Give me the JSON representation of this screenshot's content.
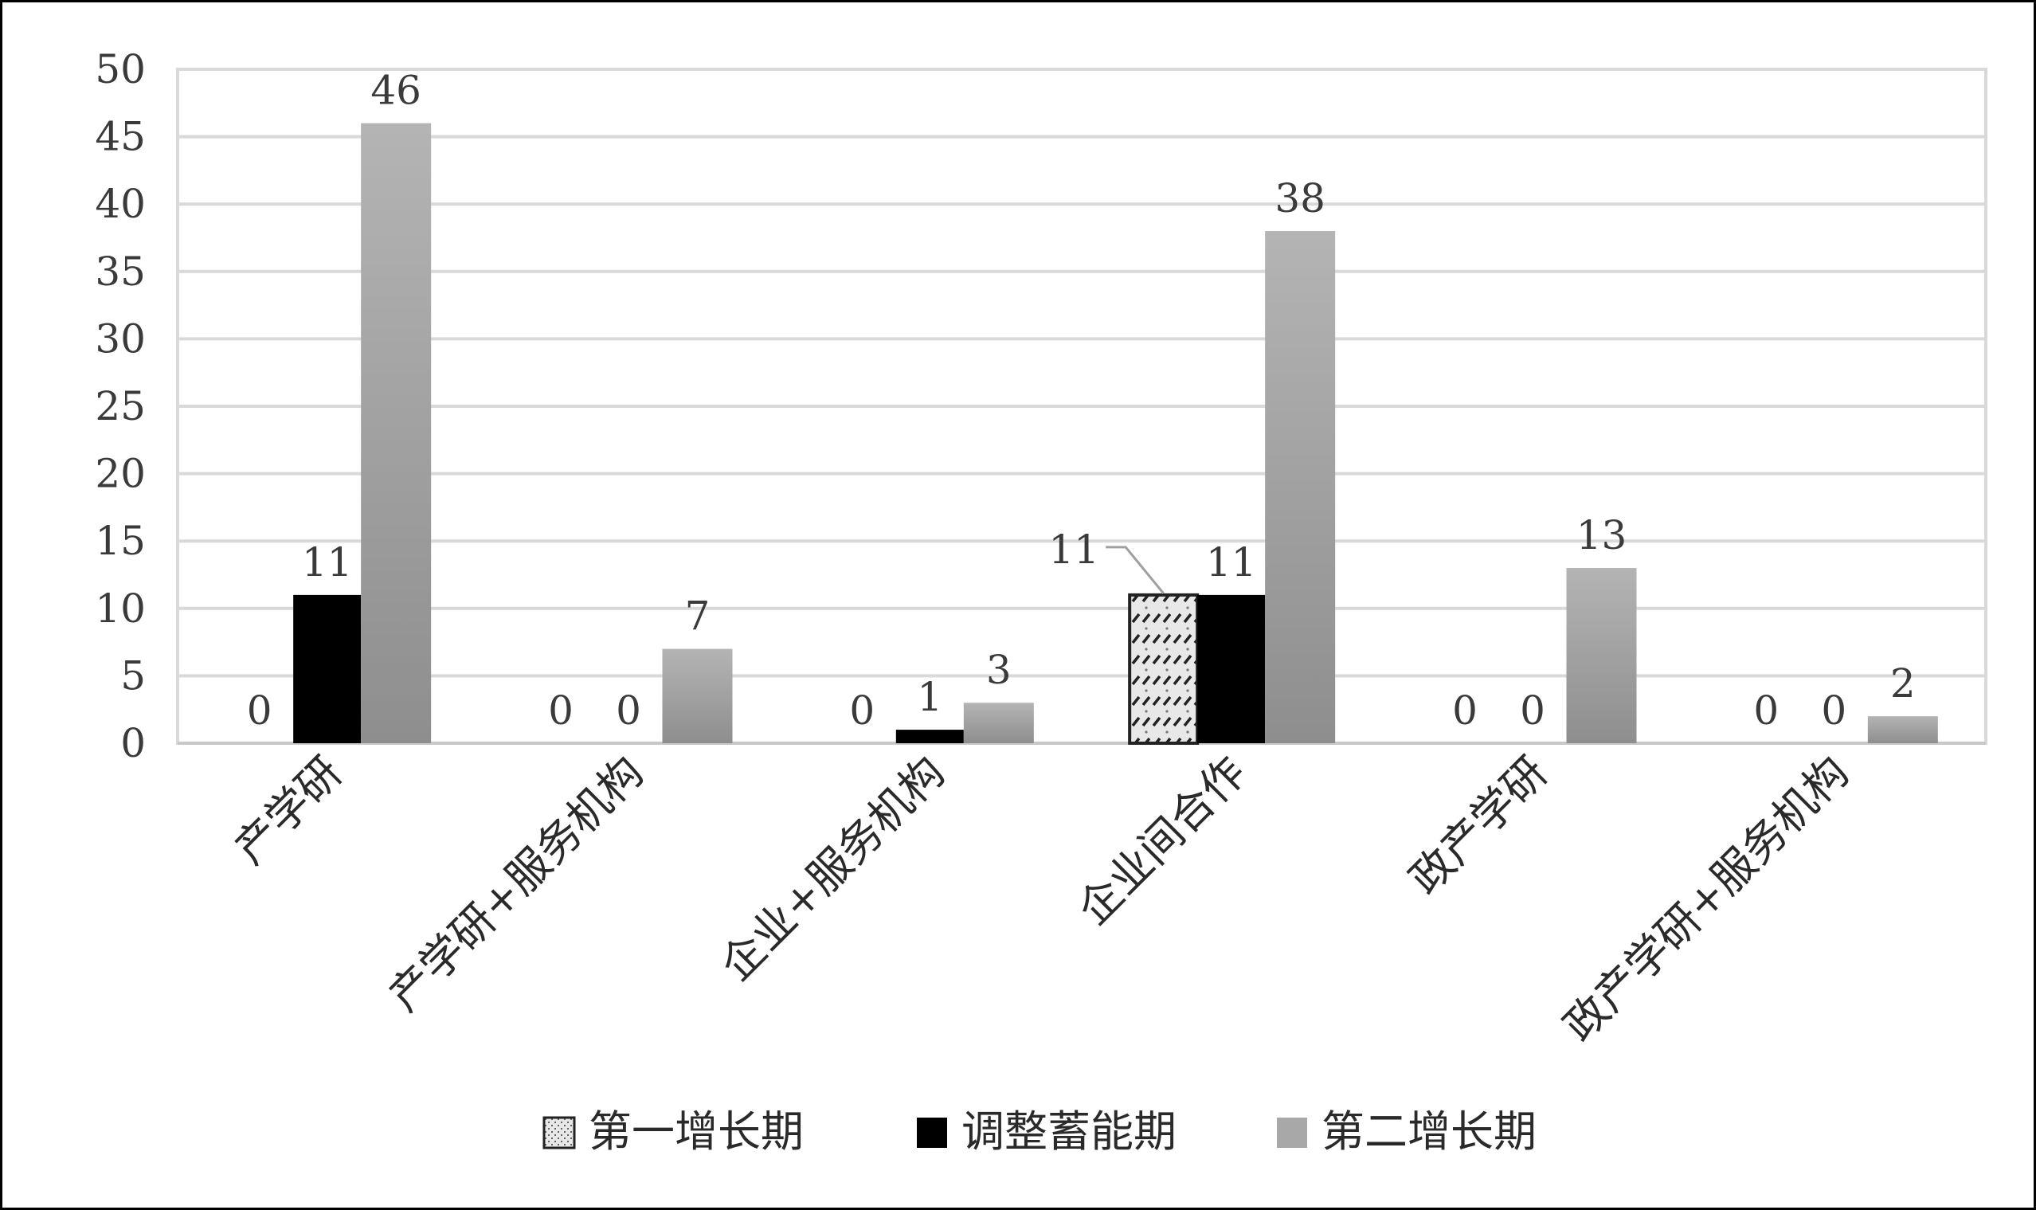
{
  "chart_data": {
    "type": "bar",
    "title": "",
    "xlabel": "",
    "ylabel": "",
    "ylim": [
      0,
      50
    ],
    "yticks": [
      0,
      5,
      10,
      15,
      20,
      25,
      30,
      35,
      40,
      45,
      50
    ],
    "grid": true,
    "legend_position": "bottom",
    "categories": [
      "产学研",
      "产学研+服务机构",
      "企业+服务机构",
      "企业间合作",
      "政产学研",
      "政产学研+服务机构"
    ],
    "series": [
      {
        "name": "第一增长期",
        "values": [
          0,
          0,
          0,
          11,
          0,
          0
        ],
        "color": "#e6e6e6",
        "pattern": "hatched-dotted"
      },
      {
        "name": "调整蓄能期",
        "values": [
          11,
          0,
          1,
          11,
          0,
          0
        ],
        "color": "#000000"
      },
      {
        "name": "第二增长期",
        "values": [
          46,
          7,
          3,
          38,
          13,
          2
        ],
        "color": "#a8a8a8"
      }
    ],
    "data_labels": [
      [
        "0",
        "0",
        "0",
        "11",
        "0",
        "0"
      ],
      [
        "11",
        "0",
        "1",
        "11",
        "0",
        "0"
      ],
      [
        "46",
        "7",
        "3",
        "38",
        "13",
        "2"
      ]
    ]
  }
}
